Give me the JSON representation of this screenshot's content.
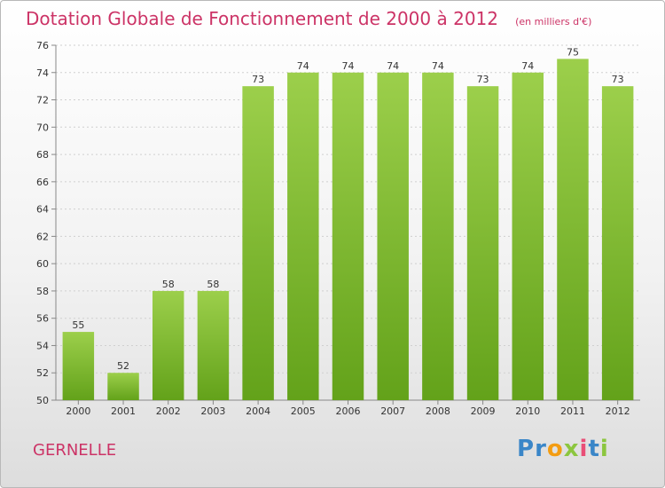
{
  "title": "Dotation Globale de Fonctionnement de 2000 à 2012",
  "subtitle": "(en milliers d'€)",
  "commune": "GERNELLE",
  "brand": {
    "letters": [
      "P",
      "r",
      "o",
      "x",
      "i",
      "t",
      "i"
    ],
    "colors": [
      "#3a86c8",
      "#3a86c8",
      "#f39c12",
      "#8cc63f",
      "#e94e77",
      "#3a86c8",
      "#8cc63f"
    ]
  },
  "colors": {
    "bar_light": "#9ccf4b",
    "bar_dark": "#63a21a",
    "title": "#cc3366",
    "grid": "#d0d0d0"
  },
  "chart_data": {
    "type": "bar",
    "categories": [
      "2000",
      "2001",
      "2002",
      "2003",
      "2004",
      "2005",
      "2006",
      "2007",
      "2008",
      "2009",
      "2010",
      "2011",
      "2012"
    ],
    "values": [
      55,
      52,
      58,
      58,
      73,
      74,
      74,
      74,
      74,
      73,
      74,
      75,
      73
    ],
    "ylim": [
      50,
      76
    ],
    "yticks": [
      50,
      52,
      54,
      56,
      58,
      60,
      62,
      64,
      66,
      68,
      70,
      72,
      74,
      76
    ],
    "grid": true,
    "legend": "none"
  }
}
